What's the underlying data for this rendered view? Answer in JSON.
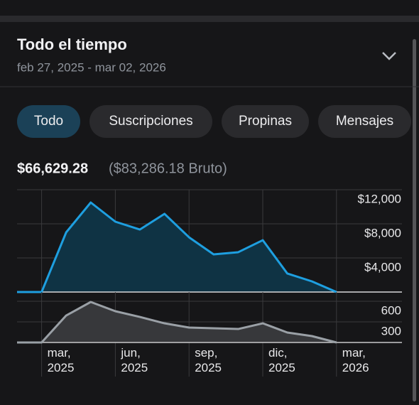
{
  "header": {
    "title": "Todo el tiempo",
    "date_range": "feb 27, 2025 - mar 02, 2026"
  },
  "tabs": [
    {
      "label": "Todo",
      "selected": true
    },
    {
      "label": "Suscripciones",
      "selected": false
    },
    {
      "label": "Propinas",
      "selected": false
    },
    {
      "label": "Mensajes",
      "selected": false
    }
  ],
  "summary": {
    "net": "$66,629.28",
    "gross": "($83,286.18 Bruto)"
  },
  "chart_data": [
    {
      "type": "line",
      "categories": [
        null,
        "mar, 2025",
        null,
        null,
        "jun, 2025",
        null,
        null,
        "sep, 2025",
        null,
        null,
        "dic, 2025",
        null,
        null,
        "mar, 2026"
      ],
      "values": [
        0,
        0,
        7000,
        10500,
        8250,
        7330,
        9170,
        6420,
        4420,
        4670,
        6080,
        2170,
        1250,
        0
      ],
      "color": "#1e9fe0",
      "fill": "#0f3344",
      "ylim": [
        0,
        12000
      ],
      "yticks": [
        {
          "value": 4000,
          "label": "$4,000"
        },
        {
          "value": 8000,
          "label": "$8,000"
        },
        {
          "value": 12000,
          "label": "$12,000"
        }
      ],
      "grid": true
    },
    {
      "type": "line",
      "categories": [
        null,
        "mar, 2025",
        null,
        null,
        "jun, 2025",
        null,
        null,
        "sep, 2025",
        null,
        null,
        "dic, 2025",
        null,
        null,
        "mar, 2026"
      ],
      "values": [
        0,
        0,
        393,
        590,
        455,
        372,
        279,
        217,
        207,
        196,
        279,
        145,
        93,
        0
      ],
      "color": "#9aa0a6",
      "fill": "#37383b",
      "ylim": [
        0,
        600
      ],
      "yticks": [
        300,
        600
      ],
      "grid": true
    }
  ]
}
